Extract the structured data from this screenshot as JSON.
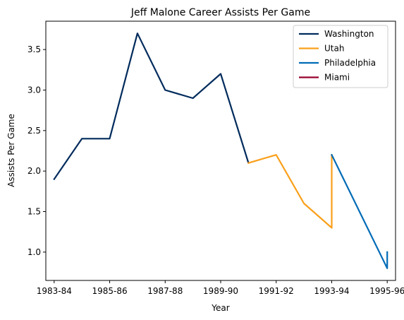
{
  "chart_data": {
    "type": "line",
    "title": "Jeff Malone Career Assists Per Game",
    "xlabel": "Year",
    "ylabel": "Assists Per Game",
    "xlim": [
      -0.3,
      12.3
    ],
    "ylim": [
      0.65,
      3.85
    ],
    "x_ticks": [
      {
        "x": 0,
        "label": "1983-84"
      },
      {
        "x": 2,
        "label": "1985-86"
      },
      {
        "x": 4,
        "label": "1987-88"
      },
      {
        "x": 6,
        "label": "1989-90"
      },
      {
        "x": 8,
        "label": "1991-92"
      },
      {
        "x": 10,
        "label": "1993-94"
      },
      {
        "x": 12,
        "label": "1995-96"
      }
    ],
    "y_ticks": [
      1.0,
      1.5,
      2.0,
      2.5,
      3.0,
      3.5
    ],
    "y_tick_labels": [
      "1.0",
      "1.5",
      "2.0",
      "2.5",
      "3.0",
      "3.5"
    ],
    "legend_position": "top-right",
    "series": [
      {
        "name": "Washington",
        "color": "#002b5c",
        "x": [
          0,
          1,
          2,
          3,
          4,
          5,
          6,
          7
        ],
        "values": [
          1.9,
          2.4,
          2.4,
          3.7,
          3.0,
          2.9,
          3.2,
          2.1
        ]
      },
      {
        "name": "Utah",
        "color": "#f9a01b",
        "x": [
          7,
          8,
          9,
          10,
          10
        ],
        "values": [
          2.1,
          2.2,
          1.6,
          1.3,
          2.2
        ]
      },
      {
        "name": "Philadelphia",
        "color": "#006bb6",
        "x": [
          10,
          12,
          12
        ],
        "values": [
          2.2,
          0.8,
          1.0
        ]
      },
      {
        "name": "Miami",
        "color": "#98002e",
        "x": [],
        "values": []
      }
    ]
  }
}
